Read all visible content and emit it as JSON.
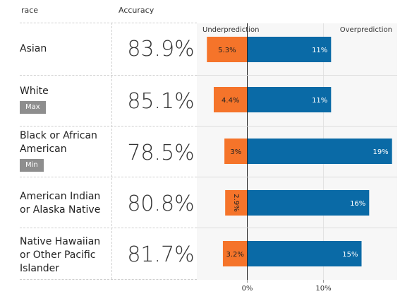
{
  "table": {
    "col_group": "race",
    "col_accuracy": "Accuracy",
    "rows": [
      {
        "name": "Asian",
        "accuracy": "83.9%",
        "badge": ""
      },
      {
        "name": "White",
        "accuracy": "85.1%",
        "badge": "Max"
      },
      {
        "name": "Black or African American",
        "accuracy": "78.5%",
        "badge": "Min"
      },
      {
        "name": "American Indian or Alaska Native",
        "accuracy": "80.8%",
        "badge": ""
      },
      {
        "name": "Native Hawaiian or Other Pacific Islander",
        "accuracy": "81.7%",
        "badge": ""
      }
    ]
  },
  "chart_data": {
    "type": "bar",
    "orientation": "horizontal",
    "categories": [
      "Asian",
      "White",
      "Black or African American",
      "American Indian or Alaska Native",
      "Native Hawaiian or Other Pacific Islander"
    ],
    "series": [
      {
        "name": "Underprediction",
        "values": [
          5.3,
          4.4,
          3,
          2.9,
          3.2
        ],
        "labels": [
          "5.3%",
          "4.4%",
          "3%",
          "2.9%",
          "3.2%"
        ],
        "color": "#f5742a"
      },
      {
        "name": "Overprediction",
        "values": [
          11,
          11,
          19,
          16,
          15
        ],
        "labels": [
          "11%",
          "11%",
          "19%",
          "16%",
          "15%"
        ],
        "color": "#0a6aa6"
      }
    ],
    "left_label": "Underprediction",
    "right_label": "Overprediction",
    "x_ticks": [
      0,
      10
    ],
    "x_tick_labels": [
      "0%",
      "10%"
    ],
    "xlim": [
      -6.6,
      19.7
    ]
  },
  "colors": {
    "underprediction": "#f5742a",
    "overprediction": "#0a6aa6",
    "panel_bg": "#f7f7f7",
    "badge": "#8e8e8e"
  }
}
